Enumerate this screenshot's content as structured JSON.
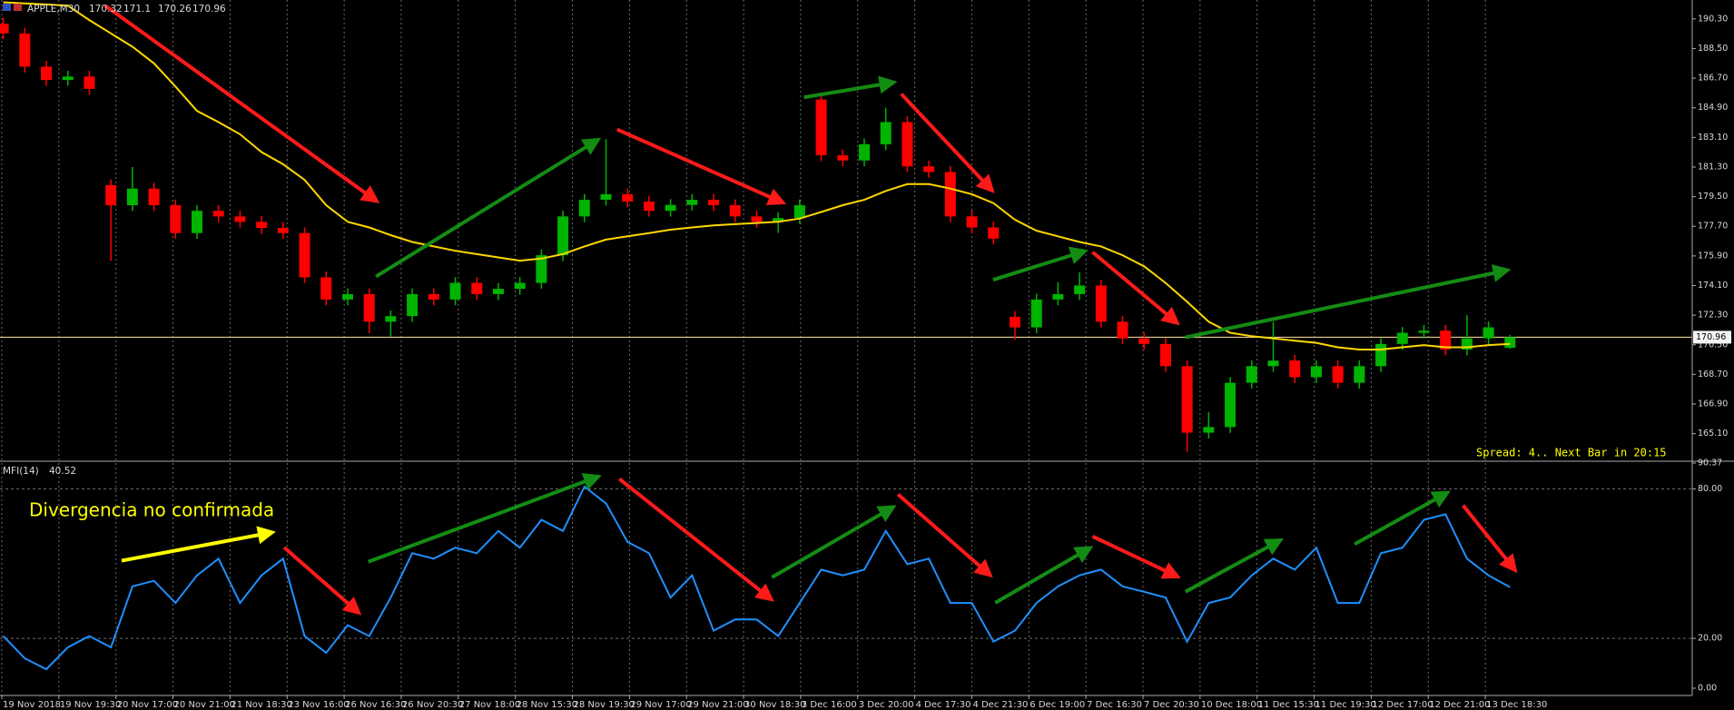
{
  "chart_data": [
    {
      "type": "candlestick",
      "title": "APPLE,M30",
      "annotation": "Spread: 4.. Next Bar in 20:15",
      "colors": {
        "up": "#00b400",
        "down": "#ff0000",
        "price_line": "#e6c88c"
      },
      "ylim": [
        163.48,
        191.45
      ],
      "yticks": [
        {
          "value": 190.3,
          "label": "190.30"
        },
        {
          "value": 188.5,
          "label": "188.50"
        },
        {
          "value": 186.7,
          "label": "186.70"
        },
        {
          "value": 184.9,
          "label": "184.90"
        },
        {
          "value": 183.1,
          "label": "183.10"
        },
        {
          "value": 181.3,
          "label": "181.30"
        },
        {
          "value": 179.5,
          "label": "179.50"
        },
        {
          "value": 177.7,
          "label": "177.70"
        },
        {
          "value": 175.9,
          "label": "175.90"
        },
        {
          "value": 174.1,
          "label": "174.10"
        },
        {
          "value": 172.3,
          "label": "172.30"
        },
        {
          "value": 170.5,
          "label": "170.50"
        },
        {
          "value": 168.7,
          "label": "168.70"
        },
        {
          "value": 166.9,
          "label": "166.90"
        },
        {
          "value": 165.1,
          "label": "165.10"
        }
      ],
      "xtick_labels": [
        "19 Nov 2018",
        "19 Nov 19:30",
        "20 Nov 17:00",
        "20 Nov 21:00",
        "21 Nov 18:30",
        "23 Nov 16:00",
        "26 Nov 16:30",
        "26 Nov 20:30",
        "27 Nov 18:00",
        "28 Nov 15:30",
        "28 Nov 19:30",
        "29 Nov 17:00",
        "29 Nov 21:00",
        "30 Nov 18:30",
        "3 Dec 16:00",
        "3 Dec 20:00",
        "4 Dec 17:30",
        "4 Dec 21:30",
        "6 Dec 19:00",
        "7 Dec 16:30",
        "7 Dec 20:30",
        "10 Dec 18:00",
        "11 Dec 15:30",
        "11 Dec 19:30",
        "12 Dec 17:00",
        "12 Dec 21:00",
        "13 Dec 18:30"
      ],
      "open": [
        190.0,
        189.42,
        187.4,
        186.59,
        186.8,
        180.2,
        178.98,
        179.99,
        178.98,
        177.29,
        178.64,
        178.3,
        177.97,
        177.6,
        177.29,
        174.6,
        173.25,
        173.58,
        171.9,
        172.24,
        173.58,
        173.25,
        174.26,
        173.58,
        173.9,
        174.26,
        175.94,
        178.3,
        179.31,
        179.65,
        179.2,
        178.64,
        179.0,
        179.31,
        178.98,
        178.3,
        177.97,
        178.2,
        185.4,
        182.01,
        181.7,
        182.68,
        184.03,
        181.34,
        181.0,
        178.3,
        177.63,
        172.2,
        171.56,
        173.25,
        173.58,
        174.1,
        171.9,
        170.89,
        170.55,
        169.2,
        165.16,
        165.5,
        168.19,
        169.2,
        169.54,
        168.53,
        169.2,
        168.19,
        169.2,
        170.55,
        171.23,
        171.36,
        170.21,
        170.89,
        170.32
      ],
      "high": [
        190.35,
        189.77,
        187.75,
        187.15,
        187.15,
        180.55,
        181.3,
        180.34,
        179.33,
        178.99,
        178.99,
        178.65,
        178.32,
        177.95,
        177.64,
        174.95,
        173.93,
        173.93,
        172.59,
        173.93,
        173.93,
        174.61,
        174.61,
        174.25,
        174.61,
        176.29,
        178.65,
        179.66,
        183.0,
        180.0,
        179.55,
        179.35,
        179.66,
        179.66,
        179.33,
        178.65,
        178.55,
        179.33,
        185.75,
        182.36,
        183.03,
        184.9,
        184.38,
        181.69,
        181.35,
        178.65,
        177.98,
        172.55,
        173.6,
        174.3,
        174.9,
        174.45,
        172.25,
        171.24,
        170.9,
        169.55,
        166.4,
        168.54,
        169.55,
        171.9,
        169.89,
        169.55,
        169.55,
        169.55,
        170.9,
        171.58,
        171.71,
        171.71,
        172.3,
        171.91,
        171.1
      ],
      "low": [
        189.07,
        187.05,
        186.24,
        186.24,
        185.7,
        175.6,
        178.63,
        178.63,
        176.94,
        176.94,
        177.95,
        177.62,
        177.25,
        176.94,
        174.25,
        172.9,
        172.9,
        171.2,
        171.0,
        171.89,
        172.9,
        172.9,
        173.23,
        173.23,
        173.55,
        173.91,
        175.59,
        177.95,
        178.96,
        178.85,
        178.29,
        178.29,
        178.65,
        178.63,
        177.95,
        177.62,
        177.3,
        177.85,
        181.66,
        181.35,
        181.35,
        182.33,
        180.99,
        180.65,
        177.95,
        177.28,
        176.6,
        170.8,
        171.21,
        172.9,
        173.23,
        171.55,
        170.54,
        170.2,
        168.85,
        164.0,
        164.81,
        165.15,
        167.84,
        168.85,
        168.18,
        168.18,
        167.84,
        167.84,
        168.85,
        170.2,
        170.88,
        169.86,
        169.86,
        170.54,
        170.26
      ],
      "close": [
        189.42,
        187.4,
        186.59,
        186.8,
        186.05,
        178.98,
        179.99,
        178.98,
        177.29,
        178.64,
        178.3,
        177.97,
        177.6,
        177.29,
        174.6,
        173.25,
        173.58,
        171.9,
        172.24,
        173.58,
        173.25,
        174.26,
        173.58,
        173.9,
        174.26,
        175.94,
        178.3,
        179.31,
        179.65,
        179.2,
        178.64,
        179.0,
        179.31,
        178.98,
        178.3,
        177.97,
        178.2,
        178.98,
        182.01,
        181.7,
        182.68,
        184.03,
        181.34,
        181.0,
        178.3,
        177.63,
        176.95,
        171.56,
        173.25,
        173.58,
        174.1,
        171.9,
        170.89,
        170.55,
        169.2,
        165.16,
        165.5,
        168.19,
        169.2,
        169.54,
        168.53,
        169.2,
        168.19,
        169.2,
        170.55,
        171.23,
        171.36,
        170.21,
        170.89,
        171.56,
        170.96
      ],
      "ma": {
        "color": "#ffd700",
        "values": [
          191.31,
          191.24,
          191.18,
          191.11,
          190.23,
          189.42,
          188.61,
          187.6,
          186.19,
          184.71,
          184.03,
          183.29,
          182.21,
          181.47,
          180.52,
          178.98,
          177.97,
          177.63,
          177.16,
          176.75,
          176.48,
          176.21,
          176.01,
          175.81,
          175.61,
          175.74,
          176.01,
          176.48,
          176.89,
          177.09,
          177.29,
          177.49,
          177.63,
          177.76,
          177.83,
          177.9,
          177.97,
          178.17,
          178.57,
          178.98,
          179.31,
          179.85,
          180.26,
          180.26,
          179.99,
          179.65,
          179.11,
          178.1,
          177.43,
          177.09,
          176.75,
          176.48,
          175.94,
          175.27,
          174.26,
          173.11,
          171.9,
          171.23,
          171.02,
          170.89,
          170.75,
          170.62,
          170.35,
          170.21,
          170.21,
          170.35,
          170.48,
          170.35,
          170.35,
          170.48,
          170.55
        ]
      }
    },
    {
      "type": "line",
      "title": "MFI(14)",
      "annotation": "Divergencia no confirmada",
      "color": "#1e90ff",
      "ylim": [
        0,
        90.37
      ],
      "yticks": [
        {
          "value": 90.37,
          "label": "90.37"
        },
        {
          "value": 80,
          "label": "80.00"
        },
        {
          "value": 20,
          "label": "20.00"
        },
        {
          "value": 0,
          "label": "0.00"
        }
      ],
      "values": [
        20.9,
        12.0,
        7.6,
        16.4,
        20.9,
        16.4,
        40.9,
        43.1,
        34.2,
        45.3,
        52.0,
        34.2,
        45.3,
        52.0,
        20.9,
        14.2,
        25.3,
        20.9,
        36.4,
        54.2,
        52.0,
        56.4,
        54.2,
        63.1,
        56.4,
        67.6,
        63.1,
        80.9,
        74.2,
        58.7,
        54.2,
        36.4,
        45.3,
        23.1,
        27.6,
        27.6,
        20.9,
        34.2,
        47.6,
        45.3,
        47.6,
        63.1,
        49.8,
        52.0,
        34.2,
        34.2,
        18.7,
        23.1,
        34.2,
        40.9,
        45.3,
        47.6,
        40.9,
        38.7,
        36.4,
        18.7,
        34.2,
        36.4,
        45.3,
        52.0,
        47.6,
        56.4,
        34.2,
        34.2,
        54.2,
        56.4,
        67.6,
        69.8,
        52.0,
        45.3,
        40.52
      ]
    }
  ]
}
